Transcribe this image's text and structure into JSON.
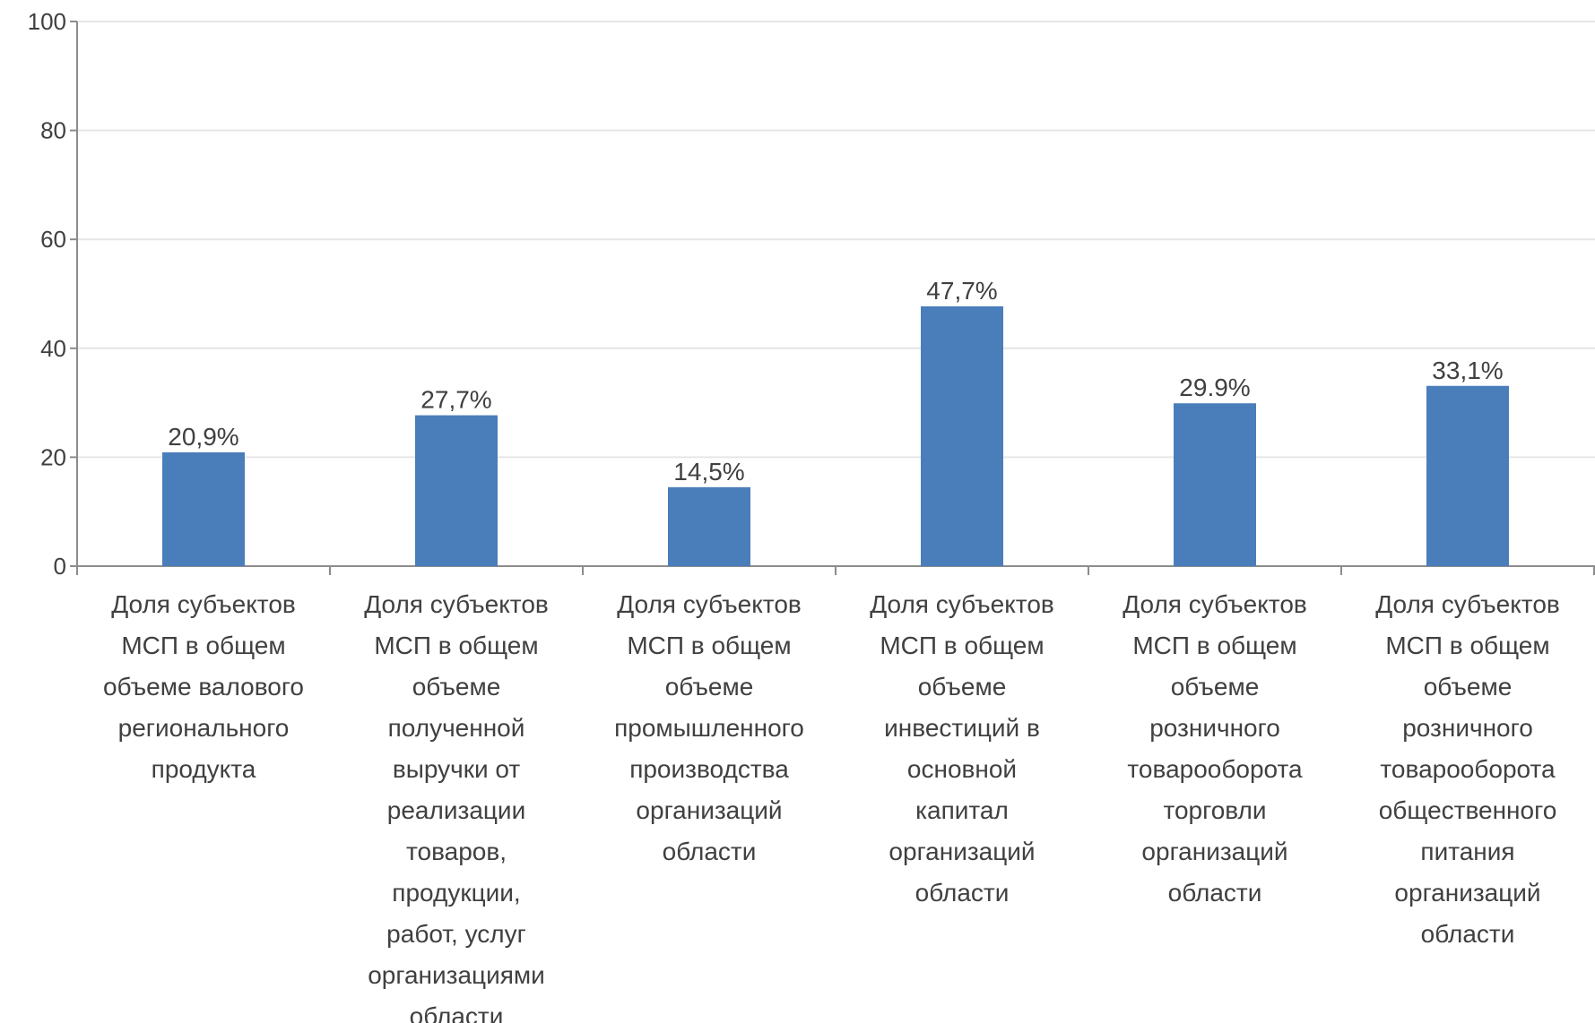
{
  "chart_data": {
    "type": "bar",
    "title": "",
    "xlabel": "",
    "ylabel": "",
    "ylim": [
      0,
      100
    ],
    "yticks": [
      0,
      20,
      40,
      60,
      80,
      100
    ],
    "grid": true,
    "legend": "none",
    "bar_color": "#4a7ebb",
    "categories": [
      [
        "Доля субъектов",
        "МСП в общем",
        "объеме валового",
        "регионального",
        "продукта"
      ],
      [
        "Доля субъектов",
        "МСП в общем",
        "объеме",
        "полученной",
        "выручки от",
        "реализации",
        "товаров,",
        "продукции,",
        "работ, услуг",
        "организациями",
        "области"
      ],
      [
        "Доля субъектов",
        "МСП в общем",
        "объеме",
        "промышленного",
        "производства",
        "организаций",
        "области"
      ],
      [
        "Доля субъектов",
        "МСП в общем",
        "объеме",
        "инвестиций в",
        "основной",
        "капитал",
        "организаций",
        "области"
      ],
      [
        "Доля субъектов",
        "МСП в общем",
        "объеме",
        "розничного",
        "товарооборота",
        "торговли",
        "организаций",
        "области"
      ],
      [
        "Доля субъектов",
        "МСП в общем",
        "объеме",
        "розничного",
        "товарооборота",
        "общественного",
        "питания",
        "организаций",
        "области"
      ]
    ],
    "values": [
      20.9,
      27.7,
      14.5,
      47.7,
      29.9,
      33.1
    ],
    "data_labels": [
      "20,9%",
      "27,7%",
      "14,5%",
      "47,7%",
      "29.9%",
      "33,1%"
    ]
  }
}
